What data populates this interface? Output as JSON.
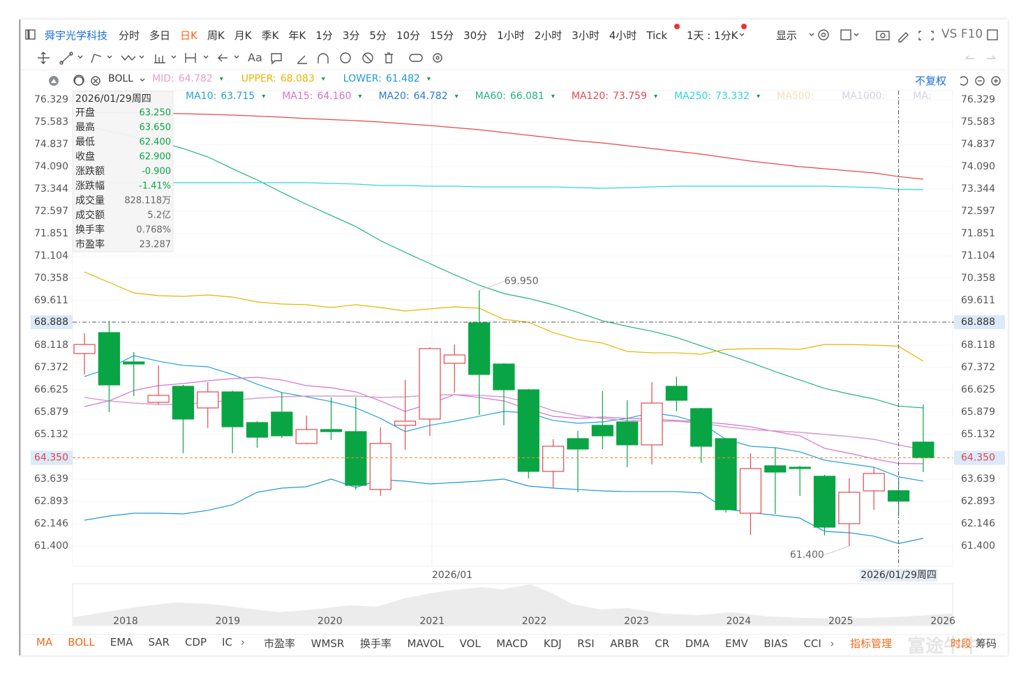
{
  "toolbar": {
    "stock": "舜宇光学科技",
    "periods": [
      "分时",
      "多日",
      "日K",
      "周K",
      "月K",
      "季K",
      "年K",
      "1分",
      "3分",
      "5分",
      "10分",
      "15分",
      "30分",
      "1小时",
      "2小时",
      "3小时",
      "4小时",
      "Tick"
    ],
    "active": "日K",
    "period_setting": "1天 : 1分K",
    "display": "显示",
    "vs": "VS F10",
    "text_tool": "Aa"
  },
  "indicator_bar": {
    "name": "BOLL",
    "adjust": "不复权"
  },
  "info_panel": {
    "date": "2026/01/29周四",
    "rows": [
      [
        "开盘",
        "63.250"
      ],
      [
        "最高",
        "63.650"
      ],
      [
        "最低",
        "62.400"
      ],
      [
        "收盘",
        "62.900"
      ],
      [
        "涨跌额",
        "-0.900"
      ],
      [
        "涨跌幅",
        "-1.41%"
      ],
      [
        "成交量",
        "828.118万"
      ],
      [
        "成交额",
        "5.2亿"
      ],
      [
        "换手率",
        "0.768%"
      ],
      [
        "市盈率",
        "23.287"
      ]
    ],
    "value_color": "#09a544"
  },
  "chart_data": {
    "type": "candlestick",
    "categories": [
      null,
      null,
      null,
      null,
      null,
      null,
      null,
      null,
      null,
      null,
      null,
      null,
      null,
      null,
      "2026/01",
      null,
      null,
      null,
      null,
      null,
      null,
      null,
      null,
      null,
      null,
      null,
      null,
      null,
      null,
      null,
      null,
      null,
      null,
      "2026/01/29周四",
      null
    ],
    "open": [
      67.838,
      68.538,
      67.558,
      66.205,
      66.742,
      66.018,
      66.555,
      65.529,
      65.879,
      64.829,
      65.296,
      65.226,
      63.289,
      65.436,
      65.646,
      67.512,
      68.865,
      67.488,
      66.625,
      63.896,
      64.992,
      65.436,
      65.552,
      64.783,
      66.742,
      65.996,
      64.992,
      62.496,
      64.083,
      64.036,
      63.733,
      62.146,
      63.243,
      63.25,
      64.876
    ],
    "high": [
      68.515,
      68.935,
      67.885,
      67.442,
      66.788,
      66.882,
      66.602,
      65.576,
      66.532,
      65.762,
      66.369,
      66.369,
      65.366,
      66.952,
      68.048,
      68.141,
      69.95,
      67.512,
      66.648,
      64.969,
      65.249,
      66.578,
      66.275,
      66.882,
      67.069,
      66.018,
      65.016,
      64.503,
      64.689,
      64.083,
      63.78,
      63.662,
      64.036,
      63.65,
      66.135
    ],
    "low": [
      67.138,
      65.879,
      66.415,
      66.135,
      64.503,
      65.342,
      64.503,
      64.689,
      65.016,
      64.806,
      64.946,
      63.289,
      63.079,
      64.619,
      65.086,
      66.532,
      65.786,
      65.436,
      63.662,
      63.336,
      63.196,
      64.643,
      64.036,
      64.129,
      65.902,
      64.176,
      62.52,
      61.773,
      62.473,
      63.079,
      61.75,
      61.4,
      62.613,
      62.4,
      63.873
    ],
    "close": [
      68.141,
      66.788,
      67.488,
      66.439,
      65.646,
      66.555,
      65.389,
      65.039,
      65.086,
      65.296,
      65.226,
      63.43,
      64.829,
      65.576,
      68.002,
      67.791,
      67.138,
      66.625,
      63.896,
      64.736,
      64.643,
      65.086,
      64.783,
      66.182,
      66.275,
      64.736,
      62.613,
      63.99,
      63.873,
      63.99,
      62.03,
      63.196,
      63.826,
      62.9,
      64.35
    ],
    "up_color": "#e0484e",
    "down_color": "#09a544",
    "ylim": [
      60.723,
      76.632
    ],
    "yticks": [
      76.329,
      75.583,
      74.837,
      {
        "value": 74.09,
        "label": "74.090"
      },
      73.344,
      72.597,
      71.851,
      71.104,
      70.358,
      69.611,
      68.118,
      67.372,
      66.625,
      65.879,
      65.132,
      63.639,
      62.893,
      62.146,
      {
        "value": 61.4,
        "label": "61.400"
      }
    ],
    "crosshair_price": 68.888,
    "last_price": {
      "value": 64.35,
      "label": "64.350"
    },
    "annotations": [
      {
        "value": 69.95,
        "label": "69.950"
      },
      {
        "value": 61.4,
        "label": "61.400"
      }
    ],
    "boll_series": [
      {
        "name": "MID:",
        "color": "#e99cc8",
        "legend_value": "64.782",
        "values": [
          66.369,
          66.252,
          66.182,
          66.135,
          66.135,
          66.205,
          66.275,
          66.345,
          66.392,
          66.415,
          66.415,
          66.415,
          66.369,
          66.392,
          66.439,
          66.462,
          66.439,
          66.392,
          66.205,
          65.925,
          65.762,
          65.669,
          65.599,
          65.575,
          65.575,
          65.505,
          65.389,
          65.295,
          65.249,
          65.202,
          65.132,
          65.062,
          64.969,
          64.782,
          64.619
        ]
      },
      {
        "name": "UPPER:",
        "color": "#e8b400",
        "legend_value": "68.083",
        "values": [
          70.567,
          70.217,
          69.867,
          69.774,
          69.751,
          69.798,
          69.728,
          69.564,
          69.494,
          69.471,
          69.378,
          69.471,
          69.378,
          69.261,
          69.331,
          69.401,
          69.354,
          68.981,
          68.888,
          68.538,
          68.305,
          68.188,
          67.908,
          67.862,
          67.862,
          67.815,
          67.978,
          68.001,
          68.001,
          67.978,
          68.141,
          68.141,
          68.118,
          68.083,
          67.582
        ]
      },
      {
        "name": "LOWER:",
        "color": "#2196d9",
        "legend_value": "61.482",
        "values": [
          62.263,
          62.403,
          62.496,
          62.496,
          62.473,
          62.59,
          62.776,
          63.196,
          63.336,
          63.383,
          63.639,
          63.359,
          63.616,
          63.569,
          63.476,
          63.522,
          63.569,
          63.639,
          63.406,
          63.336,
          63.29,
          63.243,
          63.22,
          63.22,
          63.22,
          63.173,
          62.636,
          62.52,
          62.426,
          62.333,
          61.89,
          61.843,
          61.727,
          61.482,
          61.656
        ]
      }
    ],
    "ma_series": [
      {
        "name": "MA10:",
        "color": "#27a2da",
        "legend_value": "63.715",
        "values": [
          67.068,
          67.348,
          67.768,
          67.582,
          67.442,
          67.395,
          67.138,
          66.812,
          66.532,
          66.392,
          66.229,
          66.019,
          65.669,
          65.226,
          65.436,
          65.575,
          65.739,
          65.902,
          65.855,
          65.599,
          65.505,
          65.552,
          65.669,
          65.855,
          65.739,
          65.505,
          64.969,
          64.736,
          64.689,
          64.549,
          64.269,
          64.152,
          64.036,
          63.715,
          63.569
        ]
      },
      {
        "name": "MA15:",
        "color": "#d672d2",
        "legend_value": "64.160",
        "values": [
          66.065,
          66.252,
          66.602,
          66.765,
          66.835,
          66.928,
          66.998,
          67.045,
          66.952,
          66.765,
          66.695,
          66.555,
          66.252,
          65.902,
          66.159,
          66.462,
          66.369,
          66.252,
          65.972,
          65.739,
          65.669,
          65.715,
          65.669,
          65.645,
          65.599,
          65.552,
          65.482,
          65.389,
          65.226,
          65.086,
          64.666,
          64.502,
          64.316,
          64.16,
          64.152
        ]
      },
      {
        "name": "MA20:",
        "color": "#2a7ad6",
        "legend_value": "64.782",
        "values": [
          66.369,
          66.252,
          66.182,
          66.135,
          66.135,
          66.205,
          66.275,
          66.345,
          66.392,
          66.415,
          66.415,
          66.415,
          66.369,
          66.392,
          66.439,
          66.462,
          66.439,
          66.392,
          66.205,
          65.925,
          65.762,
          65.669,
          65.599,
          65.575,
          65.575,
          65.505,
          65.389,
          65.295,
          65.249,
          65.202,
          65.132,
          65.062,
          64.969,
          64.782,
          64.619
        ]
      },
      {
        "name": "MA60:",
        "color": "#22b389",
        "legend_value": "66.081",
        "values": [
          75.466,
          75.279,
          75.093,
          74.929,
          74.696,
          74.416,
          74.02,
          73.646,
          73.227,
          72.83,
          72.457,
          72.084,
          71.617,
          71.221,
          70.847,
          70.474,
          70.124,
          69.844,
          69.681,
          69.471,
          69.215,
          68.935,
          68.748,
          68.585,
          68.375,
          68.095,
          67.815,
          67.535,
          67.232,
          66.952,
          66.672,
          66.485,
          66.322,
          66.081,
          66.019
        ]
      },
      {
        "name": "MA120:",
        "color": "#e6484c",
        "legend_value": "73.759",
        "values": [
          75.909,
          75.897,
          75.886,
          75.874,
          75.862,
          75.839,
          75.816,
          75.781,
          75.746,
          75.699,
          75.664,
          75.629,
          75.582,
          75.524,
          75.466,
          75.396,
          75.326,
          75.233,
          75.139,
          75.046,
          74.953,
          74.883,
          74.789,
          74.696,
          74.603,
          74.509,
          74.393,
          74.276,
          74.183,
          74.09,
          74.02,
          73.95,
          73.88,
          73.759,
          73.67
        ]
      },
      {
        "name": "MA250:",
        "color": "#2fd6de",
        "legend_value": "73.332",
        "values": [
          73.553,
          73.553,
          73.553,
          73.553,
          73.553,
          73.553,
          73.553,
          73.553,
          73.553,
          73.553,
          73.53,
          73.507,
          73.46,
          73.46,
          73.437,
          73.437,
          73.413,
          73.413,
          73.413,
          73.413,
          73.39,
          73.367,
          73.39,
          73.413,
          73.437,
          73.437,
          73.437,
          73.437,
          73.437,
          73.437,
          73.437,
          73.413,
          73.39,
          73.332,
          73.32
        ]
      }
    ],
    "inactive_legend": [
      {
        "name": "MA500:",
        "color": "#f6e2b8"
      },
      {
        "name": "MA1000:",
        "color": "#d9cfe8"
      },
      {
        "name": "MA:",
        "color": "#d0d4da"
      }
    ]
  },
  "navigator": {
    "years": [
      "2018",
      "2019",
      "2020",
      "2021",
      "2022",
      "2023",
      "2024",
      "2025",
      "2026"
    ]
  },
  "bottom_tabs": {
    "group1": [
      "MA",
      "BOLL",
      "EMA",
      "SAR",
      "CDP",
      "IC"
    ],
    "group2": [
      "市盈率",
      "WMSR",
      "换手率",
      "MAVOL",
      "VOL",
      "MACD",
      "KDJ",
      "RSI",
      "ARBR",
      "CR",
      "DMA",
      "EMV",
      "BIAS",
      "CCI"
    ],
    "active": [
      "MA",
      "BOLL"
    ],
    "manage": "指标管理",
    "period": "时段",
    "chips": "筹码",
    "watermark": "富途牛牛"
  }
}
